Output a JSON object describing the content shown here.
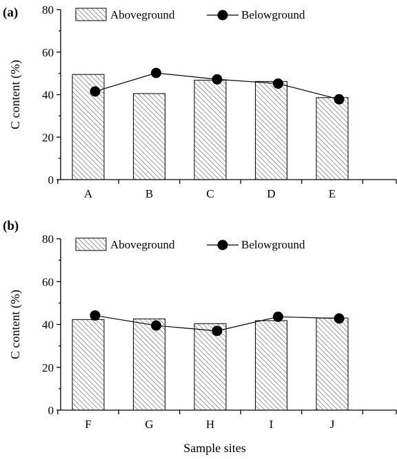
{
  "chart_data": [
    {
      "type": "bar",
      "panel_label": "(a)",
      "categories": [
        "A",
        "B",
        "C",
        "D",
        "E"
      ],
      "series": [
        {
          "name": "Aboveground",
          "type": "bar",
          "values": [
            49.5,
            40.5,
            46.8,
            46.2,
            38.6
          ],
          "pattern": "diagonal-hatch"
        },
        {
          "name": "Belowground",
          "type": "line",
          "values": [
            41.5,
            50.2,
            47.2,
            45.2,
            37.8
          ],
          "marker": "filled-circle"
        }
      ],
      "xlabel": "",
      "ylabel": "C content (%)",
      "ylim": [
        0,
        80
      ],
      "yticks": [
        "0",
        "20",
        "40",
        "60",
        "80"
      ],
      "grid": false,
      "legend_position": "top"
    },
    {
      "type": "bar",
      "panel_label": "(b)",
      "categories": [
        "F",
        "G",
        "H",
        "I",
        "J"
      ],
      "series": [
        {
          "name": "Aboveground",
          "type": "bar",
          "values": [
            42.3,
            42.6,
            40.4,
            41.8,
            43.0
          ],
          "pattern": "diagonal-hatch"
        },
        {
          "name": "Belowground",
          "type": "line",
          "values": [
            44.2,
            39.5,
            37.0,
            43.6,
            42.8
          ],
          "marker": "filled-circle"
        }
      ],
      "xlabel": "Sample sites",
      "ylabel": "C content (%)",
      "ylim": [
        0,
        80
      ],
      "yticks": [
        "0",
        "20",
        "40",
        "60",
        "80"
      ],
      "grid": false,
      "legend_position": "top"
    }
  ],
  "colors": {
    "bar_fill": "#ffffff",
    "hatch": "#555555",
    "line": "#000000",
    "marker": "#000000"
  }
}
